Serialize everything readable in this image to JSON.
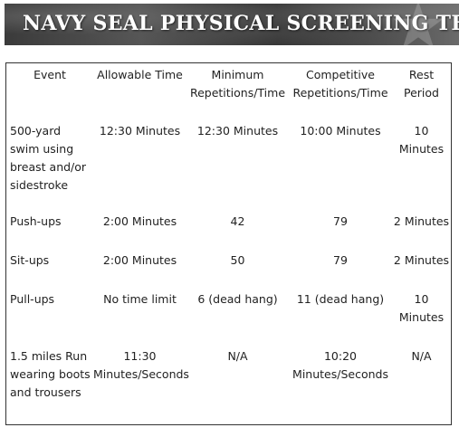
{
  "banner": {
    "title": "NAVY SEAL PHYSICAL SCREENING TEST"
  },
  "table": {
    "headers": {
      "event": "Event",
      "allowable_time": "Allowable Time",
      "minimum": "Minimum Repetitions/Time",
      "competitive": "Competitive Repetitions/Time",
      "rest": "Rest Period"
    },
    "rows": [
      {
        "event": "500-yard swim using breast and/or sidestroke",
        "allowable_time": "12:30 Minutes",
        "minimum": "12:30 Minutes",
        "competitive": "10:00 Minutes",
        "rest": "10 Minutes"
      },
      {
        "event": "Push-ups",
        "allowable_time": "2:00 Minutes",
        "minimum": "42",
        "competitive": "79",
        "rest": "2 Minutes"
      },
      {
        "event": "Sit-ups",
        "allowable_time": "2:00 Minutes",
        "minimum": "50",
        "competitive": "79",
        "rest": "2 Minutes"
      },
      {
        "event": "Pull-ups",
        "allowable_time": "No time limit",
        "minimum": "6 (dead hang)",
        "competitive": "11 (dead hang)",
        "rest": "10 Minutes"
      },
      {
        "event": "1.5 miles Run wearing boots and trousers",
        "allowable_time": "11:30 Minutes/Seconds",
        "minimum": "N/A",
        "competitive": "10:20 Minutes/Seconds",
        "rest": "N/A"
      }
    ]
  }
}
